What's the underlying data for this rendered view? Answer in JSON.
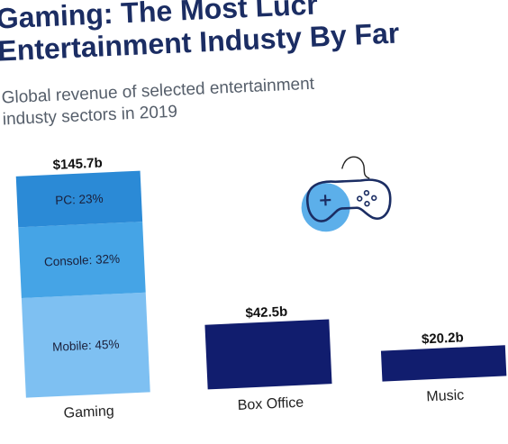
{
  "chart_data": {
    "type": "bar",
    "title_line1": "Gaming: The Most Lucr",
    "title_line2": "Entertainment Industy By Far",
    "subtitle_line1": "Global revenue of selected entertainment",
    "subtitle_line2": "industy sectors in 2019",
    "categories": [
      "Gaming",
      "Box Office",
      "Music"
    ],
    "values": [
      145.7,
      42.5,
      20.2
    ],
    "value_labels": [
      "$145.7b",
      "$42.5b",
      "$20.2b"
    ],
    "gaming_breakdown": [
      {
        "label": "Mobile: 45%",
        "share": 45,
        "color": "#7ec0f2"
      },
      {
        "label": "Console: 32%",
        "share": 32,
        "color": "#45a4e6"
      },
      {
        "label": "PC: 23%",
        "share": 23,
        "color": "#2b8ad6"
      }
    ],
    "bar_color": "#111d6e",
    "icon": "gamepad-icon",
    "ylim": [
      0,
      145.7
    ]
  }
}
